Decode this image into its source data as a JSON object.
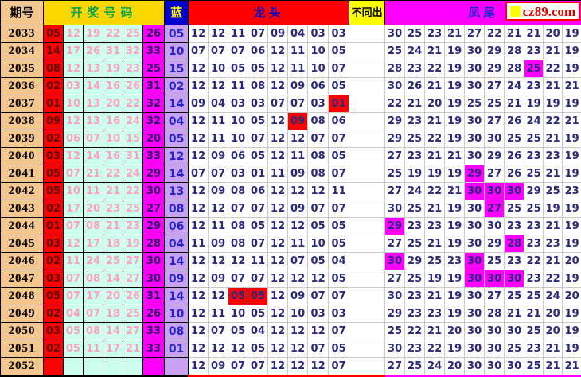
{
  "header": {
    "period_label": "期号",
    "numbers_label": "开奖号码",
    "blue_label": "蓝",
    "dragon_head_label": "龙头",
    "distinct_label": "不同出",
    "phoenix_tail_label": "凤尾",
    "logo_text": "cz89.com"
  },
  "colors": {
    "period_bg": "#F4C690",
    "numbers_header_bg": "#FFD700",
    "numbers_header_text": "#00A550",
    "blue_header_bg": "#0000CC",
    "blue_header_text": "#FFFF00",
    "dragon_header_bg": "#FF0000",
    "dragon_header_text": "#0000CC",
    "distinct_header_bg": "#FFFF00",
    "phoenix_header_bg": "#FF00FF",
    "phoenix_header_text": "#2121CC",
    "red_ball_bg": "#FF0000",
    "red_ball_text": "#5C0A00",
    "mid_ball_bg": "#CCFFEE",
    "mid_ball_text": "#FF9FBF",
    "tail_ball_bg": "#FF00FF",
    "tail_ball_text": "#2B0B5E",
    "blue_ball_bg": "#C8A2F0",
    "blue_ball_text": "#2222CC",
    "number_text": "#29297D",
    "highlight_red": "#FF0000",
    "highlight_magenta": "#FF00FF"
  },
  "chart_data": {
    "type": "table",
    "title": "彩票龙头凤尾走势图",
    "columns": [
      "期号",
      "开奖号码(6)",
      "蓝",
      "龙头(8)",
      "不同出",
      "凤尾(10)"
    ],
    "rows": [
      {
        "period": "2033",
        "red": "05",
        "mid": [
          "12",
          "19",
          "22",
          "25"
        ],
        "tail": "26",
        "blue": "05",
        "dragon": [
          "12",
          "12",
          "11",
          "07",
          "09",
          "04",
          "03",
          "03"
        ],
        "dragon_hl": [],
        "phoenix": [
          "30",
          "25",
          "23",
          "21",
          "27",
          "22",
          "21",
          "21",
          "20",
          "19"
        ],
        "phoenix_hl": []
      },
      {
        "period": "2034",
        "red": "14",
        "mid": [
          "17",
          "26",
          "31",
          "32"
        ],
        "tail": "33",
        "blue": "10",
        "dragon": [
          "07",
          "07",
          "07",
          "06",
          "12",
          "11",
          "10",
          "05"
        ],
        "dragon_hl": [],
        "phoenix": [
          "25",
          "24",
          "21",
          "19",
          "30",
          "29",
          "28",
          "23",
          "21",
          "19"
        ],
        "phoenix_hl": []
      },
      {
        "period": "2035",
        "red": "08",
        "mid": [
          "12",
          "13",
          "19",
          "23"
        ],
        "tail": "25",
        "blue": "15",
        "dragon": [
          "12",
          "10",
          "05",
          "05",
          "12",
          "11",
          "10",
          "07"
        ],
        "dragon_hl": [],
        "phoenix": [
          "28",
          "23",
          "22",
          "19",
          "30",
          "29",
          "28",
          "25",
          "22",
          "19"
        ],
        "phoenix_hl": [
          7
        ]
      },
      {
        "period": "2036",
        "red": "02",
        "mid": [
          "03",
          "14",
          "16",
          "26"
        ],
        "tail": "31",
        "blue": "02",
        "dragon": [
          "12",
          "12",
          "11",
          "08",
          "12",
          "09",
          "06",
          "05"
        ],
        "dragon_hl": [],
        "phoenix": [
          "30",
          "26",
          "21",
          "19",
          "30",
          "27",
          "24",
          "23",
          "21",
          "21"
        ],
        "phoenix_hl": []
      },
      {
        "period": "2037",
        "red": "01",
        "mid": [
          "10",
          "13",
          "20",
          "22"
        ],
        "tail": "32",
        "blue": "14",
        "dragon": [
          "09",
          "04",
          "03",
          "03",
          "07",
          "07",
          "03",
          "01"
        ],
        "dragon_hl": [
          7
        ],
        "phoenix": [
          "22",
          "21",
          "20",
          "19",
          "25",
          "25",
          "21",
          "19",
          "19",
          "19"
        ],
        "phoenix_hl": []
      },
      {
        "period": "2038",
        "red": "09",
        "mid": [
          "12",
          "13",
          "16",
          "24"
        ],
        "tail": "32",
        "blue": "04",
        "dragon": [
          "12",
          "11",
          "10",
          "05",
          "12",
          "09",
          "08",
          "06"
        ],
        "dragon_hl": [
          5
        ],
        "phoenix": [
          "29",
          "23",
          "21",
          "19",
          "30",
          "27",
          "26",
          "24",
          "22",
          "21"
        ],
        "phoenix_hl": []
      },
      {
        "period": "2039",
        "red": "02",
        "mid": [
          "06",
          "07",
          "10",
          "15"
        ],
        "tail": "20",
        "blue": "05",
        "dragon": [
          "12",
          "11",
          "10",
          "07",
          "12",
          "12",
          "07",
          "07"
        ],
        "dragon_hl": [],
        "phoenix": [
          "29",
          "25",
          "22",
          "19",
          "30",
          "30",
          "25",
          "25",
          "21",
          "19"
        ],
        "phoenix_hl": []
      },
      {
        "period": "2040",
        "red": "03",
        "mid": [
          "12",
          "14",
          "16",
          "31"
        ],
        "tail": "33",
        "blue": "12",
        "dragon": [
          "12",
          "09",
          "06",
          "05",
          "12",
          "11",
          "08",
          "05"
        ],
        "dragon_hl": [],
        "phoenix": [
          "27",
          "23",
          "21",
          "21",
          "30",
          "29",
          "26",
          "23",
          "23",
          "19"
        ],
        "phoenix_hl": []
      },
      {
        "period": "2041",
        "red": "05",
        "mid": [
          "07",
          "21",
          "22",
          "24"
        ],
        "tail": "29",
        "blue": "14",
        "dragon": [
          "07",
          "07",
          "03",
          "01",
          "11",
          "09",
          "08",
          "07"
        ],
        "dragon_hl": [],
        "phoenix": [
          "25",
          "19",
          "19",
          "19",
          "29",
          "27",
          "26",
          "25",
          "21",
          "19"
        ],
        "phoenix_hl": [
          4
        ]
      },
      {
        "period": "2042",
        "red": "05",
        "mid": [
          "10",
          "11",
          "21",
          "22"
        ],
        "tail": "30",
        "blue": "13",
        "dragon": [
          "12",
          "09",
          "08",
          "06",
          "12",
          "12",
          "12",
          "11"
        ],
        "dragon_hl": [],
        "phoenix": [
          "27",
          "24",
          "22",
          "21",
          "30",
          "30",
          "30",
          "29",
          "25",
          "23"
        ],
        "phoenix_hl": [
          4,
          5,
          6
        ]
      },
      {
        "period": "2043",
        "red": "02",
        "mid": [
          "17",
          "20",
          "23",
          "25"
        ],
        "tail": "27",
        "blue": "08",
        "dragon": [
          "12",
          "12",
          "07",
          "07",
          "12",
          "09",
          "07",
          "07"
        ],
        "dragon_hl": [],
        "phoenix": [
          "30",
          "25",
          "21",
          "19",
          "30",
          "27",
          "25",
          "25",
          "19",
          "19"
        ],
        "phoenix_hl": [
          5
        ]
      },
      {
        "period": "2044",
        "red": "01",
        "mid": [
          "07",
          "08",
          "21",
          "23"
        ],
        "tail": "29",
        "blue": "06",
        "dragon": [
          "12",
          "11",
          "08",
          "05",
          "12",
          "12",
          "05",
          "05"
        ],
        "dragon_hl": [],
        "phoenix": [
          "29",
          "23",
          "23",
          "19",
          "30",
          "30",
          "23",
          "23",
          "21",
          "19"
        ],
        "phoenix_hl": [
          0
        ]
      },
      {
        "period": "2045",
        "red": "03",
        "mid": [
          "12",
          "17",
          "18",
          "19"
        ],
        "tail": "28",
        "blue": "04",
        "dragon": [
          "11",
          "09",
          "08",
          "07",
          "12",
          "11",
          "10",
          "05"
        ],
        "dragon_hl": [],
        "phoenix": [
          "27",
          "25",
          "21",
          "19",
          "30",
          "29",
          "28",
          "23",
          "23",
          "19"
        ],
        "phoenix_hl": [
          6
        ]
      },
      {
        "period": "2046",
        "red": "02",
        "mid": [
          "11",
          "24",
          "25",
          "27"
        ],
        "tail": "30",
        "blue": "14",
        "dragon": [
          "12",
          "12",
          "12",
          "11",
          "12",
          "07",
          "05",
          "04"
        ],
        "dragon_hl": [],
        "phoenix": [
          "30",
          "29",
          "25",
          "23",
          "30",
          "25",
          "23",
          "22",
          "21",
          "20"
        ],
        "phoenix_hl": [
          0,
          4
        ]
      },
      {
        "period": "2047",
        "red": "03",
        "mid": [
          "07",
          "08",
          "14",
          "27"
        ],
        "tail": "30",
        "blue": "09",
        "dragon": [
          "12",
          "09",
          "07",
          "07",
          "12",
          "12",
          "12",
          "05"
        ],
        "dragon_hl": [],
        "phoenix": [
          "27",
          "25",
          "19",
          "19",
          "30",
          "30",
          "30",
          "23",
          "22",
          "19"
        ],
        "phoenix_hl": [
          4,
          5,
          6
        ]
      },
      {
        "period": "2048",
        "red": "05",
        "mid": [
          "07",
          "17",
          "20",
          "26"
        ],
        "tail": "31",
        "blue": "14",
        "dragon": [
          "12",
          "12",
          "05",
          "05",
          "12",
          "09",
          "07",
          "07"
        ],
        "dragon_hl": [
          2,
          3
        ],
        "phoenix": [
          "30",
          "23",
          "21",
          "19",
          "30",
          "27",
          "25",
          "25",
          "24",
          "20"
        ],
        "phoenix_hl": []
      },
      {
        "period": "2049",
        "red": "02",
        "mid": [
          "04",
          "07",
          "18",
          "25"
        ],
        "tail": "26",
        "blue": "10",
        "dragon": [
          "12",
          "11",
          "10",
          "05",
          "12",
          "10",
          "03",
          "03"
        ],
        "dragon_hl": [],
        "phoenix": [
          "29",
          "23",
          "23",
          "19",
          "30",
          "28",
          "21",
          "21",
          "20",
          "19"
        ],
        "phoenix_hl": []
      },
      {
        "period": "2050",
        "red": "03",
        "mid": [
          "05",
          "08",
          "14",
          "27"
        ],
        "tail": "33",
        "blue": "08",
        "dragon": [
          "12",
          "07",
          "05",
          "04",
          "12",
          "12",
          "12",
          "07"
        ],
        "dragon_hl": [],
        "phoenix": [
          "25",
          "22",
          "21",
          "20",
          "30",
          "30",
          "30",
          "25",
          "20",
          "19"
        ],
        "phoenix_hl": []
      },
      {
        "period": "2051",
        "red": "02",
        "mid": [
          "05",
          "11",
          "17",
          "21"
        ],
        "tail": "33",
        "blue": "01",
        "dragon": [
          "12",
          "12",
          "12",
          "05",
          "12",
          "12",
          "07",
          "05"
        ],
        "dragon_hl": [],
        "phoenix": [
          "30",
          "23",
          "22",
          "19",
          "30",
          "30",
          "25",
          "23",
          "21",
          "19"
        ],
        "phoenix_hl": []
      },
      {
        "period": "2052",
        "red": "",
        "mid": [
          "",
          "",
          "",
          ""
        ],
        "tail": "",
        "blue": "",
        "dragon": [
          "12",
          "09",
          "07",
          "07",
          "12",
          "12",
          "12",
          "07"
        ],
        "dragon_hl": [],
        "phoenix": [
          "27",
          "25",
          "24",
          "20",
          "30",
          "30",
          "30",
          "25",
          "21",
          "21"
        ],
        "phoenix_hl": []
      }
    ]
  }
}
